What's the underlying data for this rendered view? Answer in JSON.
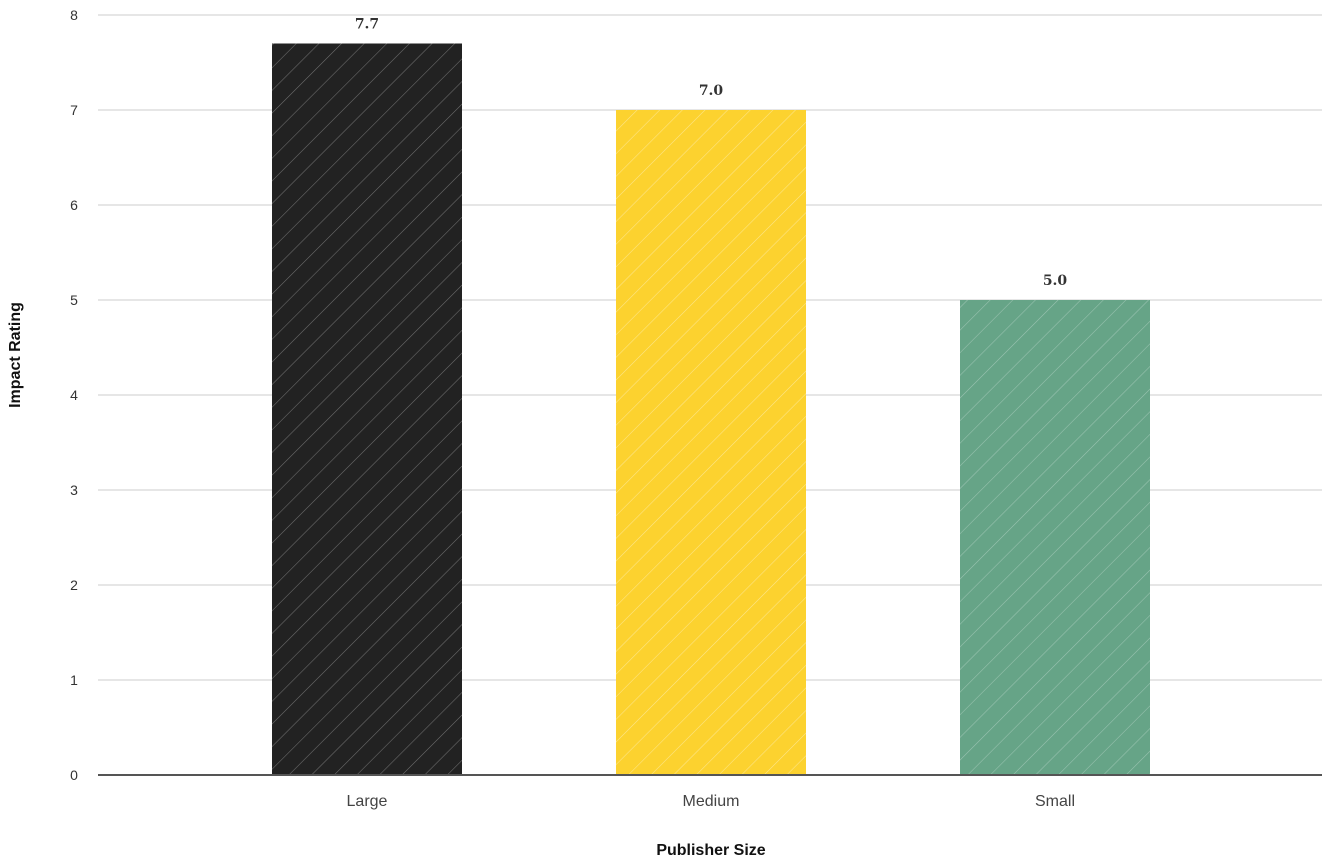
{
  "chart_data": {
    "type": "bar",
    "categories": [
      "Large",
      "Medium",
      "Small"
    ],
    "values": [
      7.7,
      7.0,
      5.0
    ],
    "value_labels": [
      "7.7",
      "7.0",
      "5.0"
    ],
    "colors": [
      "#222222",
      "#fcd22f",
      "#66a487"
    ],
    "bar_pattern": "diagonal-hatch",
    "title": "",
    "xlabel": "Publisher Size",
    "ylabel": "Impact Rating",
    "ylim": [
      0,
      8
    ],
    "yticks": [
      0,
      1,
      2,
      3,
      4,
      5,
      6,
      7,
      8
    ],
    "ytick_labels": [
      "0",
      "1",
      "2",
      "3",
      "4",
      "5",
      "6",
      "7",
      "8"
    ],
    "grid": true,
    "gridline_color": "#cccccc",
    "baseline_color": "#555555",
    "legend": "none"
  }
}
